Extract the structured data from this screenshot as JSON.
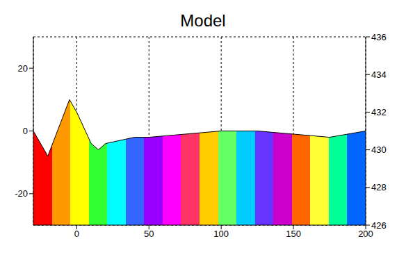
{
  "chart_data": {
    "type": "surface",
    "title": "Model",
    "x": [
      -30,
      -20,
      -10,
      -5,
      0,
      10,
      15,
      20,
      30,
      40,
      50,
      75,
      100,
      125,
      150,
      175,
      200
    ],
    "values": [
      0,
      -8,
      4,
      10,
      6,
      -4,
      -6,
      -4,
      -3,
      -2,
      -2,
      -1,
      0,
      0,
      -1,
      -2,
      0
    ],
    "xlim": [
      -30,
      200
    ],
    "xticks": [
      0,
      50,
      100,
      150,
      200
    ],
    "ylim": [
      -30,
      30
    ],
    "yticks": [
      -20,
      0,
      20
    ],
    "y2lim": [
      426,
      436
    ],
    "y2ticks": [
      426,
      428,
      430,
      432,
      434,
      436
    ],
    "grid": true
  }
}
